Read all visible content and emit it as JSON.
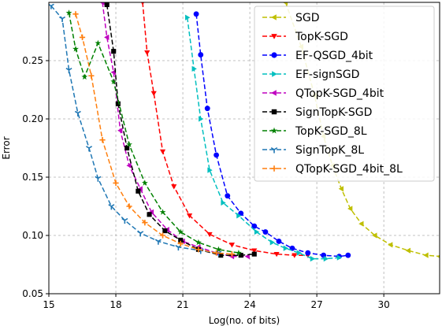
{
  "chart_data": {
    "type": "line",
    "title": "",
    "xlabel": "Log(no. of bits)",
    "ylabel": "Error",
    "xlim": [
      15,
      32.5
    ],
    "ylim": [
      0.05,
      0.3
    ],
    "xticks": [
      15,
      18,
      21,
      24,
      27,
      30
    ],
    "xtick_labels": [
      "15",
      "18",
      "21",
      "24",
      "27",
      "30"
    ],
    "yticks": [
      0.05,
      0.1,
      0.15,
      0.2,
      0.25
    ],
    "ytick_labels": [
      "0.05",
      "0.10",
      "0.15",
      "0.20",
      "0.25"
    ],
    "grid": true,
    "legend_position": "top-right",
    "series": [
      {
        "name": "SGD",
        "color": "#bfbf00",
        "marker": "triangle-left",
        "x": [
          25.6,
          26.3,
          26.9,
          27.3,
          27.7,
          28.1,
          28.5,
          29.0,
          29.6,
          30.3,
          31.1,
          31.9,
          32.5
        ],
        "y": [
          0.3,
          0.262,
          0.22,
          0.185,
          0.16,
          0.14,
          0.123,
          0.11,
          0.1,
          0.092,
          0.087,
          0.083,
          0.082
        ]
      },
      {
        "name": "TopK-SGD",
        "color": "#ff0000",
        "marker": "triangle-down",
        "x": [
          19.2,
          19.4,
          19.7,
          20.1,
          20.6,
          21.3,
          22.2,
          23.2,
          24.2,
          25.2,
          26.0,
          26.6
        ],
        "y": [
          0.3,
          0.257,
          0.222,
          0.172,
          0.142,
          0.117,
          0.101,
          0.092,
          0.087,
          0.084,
          0.083,
          0.083
        ]
      },
      {
        "name": "EF-QSGD_4bit",
        "color": "#0000ff",
        "marker": "circle",
        "x": [
          21.6,
          21.8,
          22.1,
          22.5,
          23.0,
          23.6,
          24.2,
          24.7,
          25.3,
          25.9,
          26.6,
          27.3,
          28.0,
          28.4
        ],
        "y": [
          0.29,
          0.255,
          0.209,
          0.169,
          0.134,
          0.119,
          0.108,
          0.103,
          0.095,
          0.089,
          0.085,
          0.083,
          0.082,
          0.083
        ]
      },
      {
        "name": "EF-signSGD",
        "color": "#00bfbf",
        "marker": "triangle-right",
        "x": [
          21.2,
          21.5,
          21.8,
          22.2,
          22.8,
          23.5,
          24.3,
          25.0,
          25.6,
          26.2,
          26.8,
          27.4,
          28.0
        ],
        "y": [
          0.287,
          0.243,
          0.2,
          0.156,
          0.128,
          0.117,
          0.103,
          0.094,
          0.089,
          0.085,
          0.08,
          0.08,
          0.081
        ]
      },
      {
        "name": "QTopK-SGD_4bit",
        "color": "#bf00bf",
        "marker": "triangle-left",
        "x": [
          17.4,
          17.6,
          17.9,
          18.2,
          18.6,
          19.1,
          19.6,
          20.3,
          21.0,
          21.7,
          22.5,
          23.2,
          23.9
        ],
        "y": [
          0.3,
          0.27,
          0.24,
          0.19,
          0.16,
          0.14,
          0.12,
          0.105,
          0.095,
          0.09,
          0.085,
          0.082,
          0.082
        ]
      },
      {
        "name": "SignTopK-SGD",
        "color": "#000000",
        "marker": "square",
        "x": [
          17.6,
          17.9,
          18.1,
          18.5,
          19.0,
          19.5,
          20.2,
          20.9,
          21.7,
          22.7,
          23.6,
          24.2
        ],
        "y": [
          0.298,
          0.258,
          0.213,
          0.175,
          0.138,
          0.118,
          0.104,
          0.096,
          0.088,
          0.083,
          0.083,
          0.084
        ]
      },
      {
        "name": "TopK-SGD_8L",
        "color": "#008000",
        "marker": "star",
        "x": [
          15.9,
          16.2,
          16.6,
          17.2,
          17.9,
          18.6,
          19.3,
          20.1,
          20.9,
          21.7,
          22.6,
          23.5
        ],
        "y": [
          0.291,
          0.26,
          0.236,
          0.265,
          0.232,
          0.178,
          0.145,
          0.12,
          0.103,
          0.094,
          0.088,
          0.085
        ]
      },
      {
        "name": "SignTopK_8L",
        "color": "#1f77b4",
        "marker": "tri-down",
        "x": [
          15.1,
          15.6,
          15.9,
          16.3,
          16.8,
          17.2,
          17.8,
          18.4,
          19.1,
          19.9,
          20.8,
          21.8,
          22.6
        ],
        "y": [
          0.297,
          0.286,
          0.242,
          0.205,
          0.175,
          0.149,
          0.125,
          0.113,
          0.102,
          0.095,
          0.09,
          0.087,
          0.085
        ]
      },
      {
        "name": "QTopK-SGD_4bit_8L",
        "color": "#ff7f0e",
        "marker": "plus",
        "x": [
          16.2,
          16.5,
          16.9,
          17.4,
          18.0,
          18.6,
          19.3,
          20.1,
          20.9,
          21.7,
          22.5,
          23.2
        ],
        "y": [
          0.29,
          0.27,
          0.237,
          0.182,
          0.145,
          0.125,
          0.111,
          0.1,
          0.093,
          0.088,
          0.085,
          0.084
        ]
      }
    ]
  }
}
